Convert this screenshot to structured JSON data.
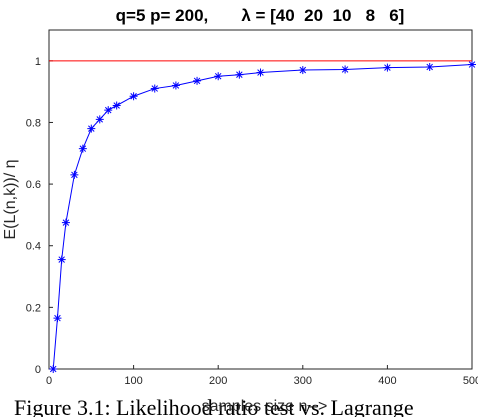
{
  "chart_data": {
    "type": "line",
    "title": "q=5 p= 200,       λ = [40  20  10   8   6]",
    "xlabel": "samples size n-->",
    "ylabel": "E(L(n,k))/ η",
    "xlim": [
      0,
      500
    ],
    "ylim": [
      0,
      1.1
    ],
    "xticks": [
      0,
      100,
      200,
      300,
      400,
      500
    ],
    "yticks": [
      0,
      0.2,
      0.4,
      0.6,
      0.8,
      1
    ],
    "xtick_labels": [
      "0",
      "100",
      "200",
      "300",
      "400",
      "500"
    ],
    "ytick_labels": [
      "0",
      "0.2",
      "0.4",
      "0.6",
      "0.8",
      "1"
    ],
    "grid": false,
    "series": [
      {
        "color": "#0000ff",
        "marker": "asterisk",
        "x": [
          5,
          10,
          15,
          20,
          30,
          40,
          50,
          60,
          70,
          80,
          100,
          125,
          150,
          175,
          200,
          225,
          250,
          300,
          350,
          400,
          450,
          500
        ],
        "y": [
          0.0,
          0.165,
          0.355,
          0.475,
          0.63,
          0.715,
          0.78,
          0.81,
          0.84,
          0.855,
          0.885,
          0.91,
          0.92,
          0.935,
          0.95,
          0.955,
          0.962,
          0.97,
          0.972,
          0.978,
          0.98,
          0.988
        ]
      },
      {
        "color": "#ff0000",
        "marker": "none",
        "x": [
          0,
          500
        ],
        "y": [
          1.0,
          1.0
        ]
      }
    ]
  },
  "caption": "Figure 3.1: Likelihood ratio test vs. Lagrange"
}
